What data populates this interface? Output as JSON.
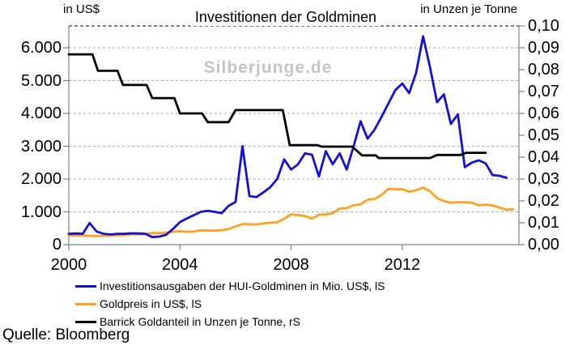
{
  "page": {
    "title": "Investitionen der Goldminen",
    "watermark": "Silberjunge.de",
    "source": "Quelle: Bloomberg"
  },
  "axes": {
    "left_header": "in US$",
    "right_header": "in Unzen je Tonne",
    "x_ticks": [
      {
        "label": "2000",
        "value": 2000
      },
      {
        "label": "2004",
        "value": 2004
      },
      {
        "label": "2008",
        "value": 2008
      },
      {
        "label": "2012",
        "value": 2012
      }
    ],
    "left_ticks": [
      {
        "label": "0",
        "value": 0
      },
      {
        "label": "1.000",
        "value": 1000
      },
      {
        "label": "2.000",
        "value": 2000
      },
      {
        "label": "3.000",
        "value": 3000
      },
      {
        "label": "4.000",
        "value": 4000
      },
      {
        "label": "5.000",
        "value": 5000
      },
      {
        "label": "6.000",
        "value": 6000
      }
    ],
    "right_ticks": [
      {
        "label": "0,00",
        "value": 0.0
      },
      {
        "label": "0,01",
        "value": 0.01
      },
      {
        "label": "0,02",
        "value": 0.02
      },
      {
        "label": "0,03",
        "value": 0.03
      },
      {
        "label": "0,04",
        "value": 0.04
      },
      {
        "label": "0,05",
        "value": 0.05
      },
      {
        "label": "0,06",
        "value": 0.06
      },
      {
        "label": "0,07",
        "value": 0.07
      },
      {
        "label": "0,08",
        "value": 0.08
      },
      {
        "label": "0,09",
        "value": 0.09
      },
      {
        "label": "0,10",
        "value": 0.1
      }
    ]
  },
  "legend": [
    {
      "label": "Investitionsausgaben der HUI-Goldminen in Mio. US$, lS",
      "color": "#1212d4"
    },
    {
      "label": "Goldpreis in US$, lS",
      "color": "#ffa01e"
    },
    {
      "label": "Barrick Goldanteil in Unzen je Tonne, rS",
      "color": "#000000"
    }
  ],
  "chart_data": {
    "type": "line",
    "title": "Investitionen der Goldminen",
    "x_range": [
      2000,
      2016.2
    ],
    "grid": "horizontal-dashed",
    "legend_position": "bottom-left",
    "left_axis": {
      "label": "in US$",
      "range": [
        0,
        6666.7
      ],
      "grid_values": [
        1000,
        2000,
        3000,
        4000,
        5000,
        6000
      ]
    },
    "right_axis": {
      "label": "in Unzen je Tonne",
      "range": [
        0,
        0.1
      ]
    },
    "series": [
      {
        "name": "Investitionsausgaben der HUI-Goldminen in Mio. US$, lS",
        "axis": "left",
        "color": "#1212d4",
        "z": 2,
        "x_start": 2000,
        "x_step": 0.25,
        "values": [
          330,
          340,
          330,
          660,
          400,
          330,
          310,
          330,
          330,
          345,
          340,
          330,
          230,
          245,
          300,
          480,
          690,
          800,
          900,
          1000,
          1030,
          1000,
          960,
          1180,
          1300,
          3000,
          1480,
          1450,
          1590,
          1750,
          2000,
          2600,
          2290,
          2450,
          2780,
          2740,
          2080,
          2850,
          2450,
          2780,
          2290,
          3000,
          3760,
          3230,
          3500,
          3890,
          4300,
          4710,
          4910,
          4620,
          5240,
          6350,
          5400,
          4340,
          4580,
          3680,
          3970,
          2360,
          2500,
          2570,
          2480,
          2120,
          2100,
          2040
        ]
      },
      {
        "name": "Goldpreis in US$, lS",
        "axis": "left",
        "color": "#ffa01e",
        "z": 1,
        "x_start": 2000,
        "x_step": 0.25,
        "values": [
          285,
          279,
          277,
          269,
          265,
          268,
          274,
          278,
          295,
          313,
          314,
          323,
          352,
          347,
          363,
          392,
          408,
          393,
          401,
          434,
          427,
          430,
          440,
          476,
          554,
          628,
          622,
          614,
          650,
          667,
          680,
          788,
          925,
          896,
          872,
          795,
          908,
          922,
          960,
          1100,
          1110,
          1200,
          1227,
          1370,
          1390,
          1510,
          1700,
          1690,
          1690,
          1610,
          1655,
          1740,
          1630,
          1415,
          1330,
          1275,
          1295,
          1290,
          1280,
          1200,
          1220,
          1195,
          1125,
          1065,
          1080
        ]
      },
      {
        "name": "Barrick Goldanteil in Unzen je Tonne, rS",
        "axis": "right",
        "color": "#000000",
        "z": 3,
        "points": [
          [
            2000.0,
            0.087
          ],
          [
            2000.85,
            0.087
          ],
          [
            2001.05,
            0.0795
          ],
          [
            2001.75,
            0.0795
          ],
          [
            2001.95,
            0.073
          ],
          [
            2002.8,
            0.073
          ],
          [
            2003.0,
            0.067
          ],
          [
            2003.8,
            0.067
          ],
          [
            2004.0,
            0.06
          ],
          [
            2004.8,
            0.06
          ],
          [
            2005.0,
            0.056
          ],
          [
            2005.75,
            0.056
          ],
          [
            2006.0,
            0.0615
          ],
          [
            2007.7,
            0.0615
          ],
          [
            2007.95,
            0.0455
          ],
          [
            2008.95,
            0.0455
          ],
          [
            2009.1,
            0.0448
          ],
          [
            2010.2,
            0.0448
          ],
          [
            2010.55,
            0.0408
          ],
          [
            2011.05,
            0.0408
          ],
          [
            2011.15,
            0.0396
          ],
          [
            2013.0,
            0.0396
          ],
          [
            2013.25,
            0.041
          ],
          [
            2014.1,
            0.041
          ],
          [
            2014.3,
            0.042
          ],
          [
            2015.0,
            0.042
          ]
        ]
      }
    ]
  }
}
